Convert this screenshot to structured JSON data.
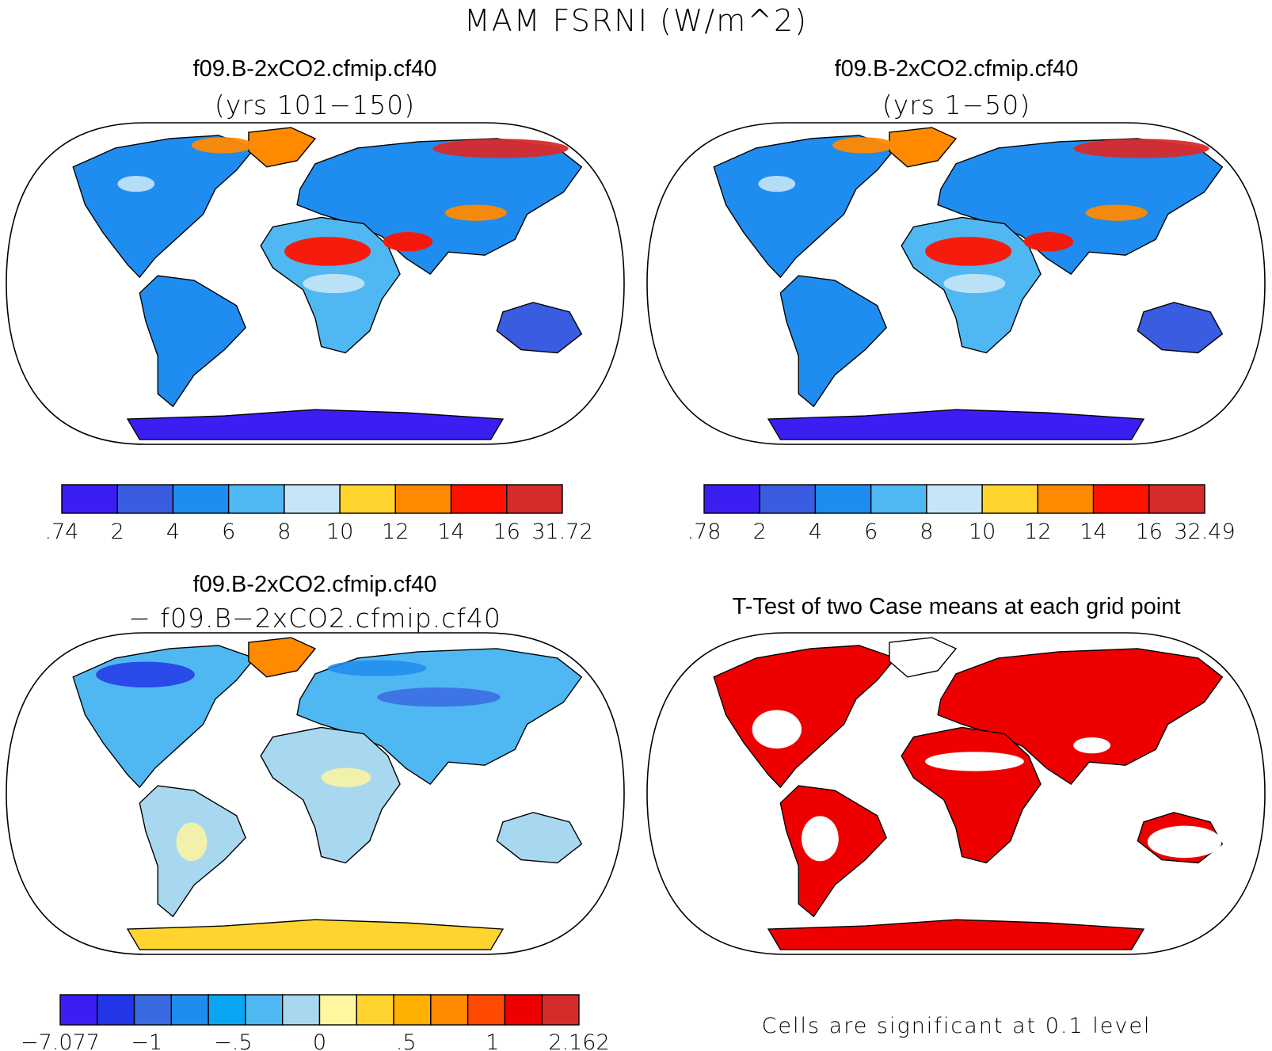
{
  "title": "MAM FSRNI (W/m^2)",
  "colors": {
    "land_outline": "#000000",
    "significant_fill": "#ee0000",
    "ocean": "#ffffff"
  },
  "chart_data": [
    {
      "type": "heatmap",
      "title": "f09.B-2xCO2.cfmip.cf40",
      "subtitle": "(yrs 101−150)",
      "projection": "robinson",
      "colorbar": {
        "labels": [
          ".74",
          "2",
          "4",
          "6",
          "8",
          "10",
          "12",
          "14",
          "16",
          "31.72"
        ],
        "levels": [
          0.74,
          2,
          4,
          6,
          8,
          10,
          12,
          14,
          16,
          31.72
        ],
        "colors": [
          "#3a1ef2",
          "#3a5ce0",
          "#1f8cf0",
          "#4fb8f2",
          "#c6e6f7",
          "#ffd42e",
          "#ff8a00",
          "#ff1300",
          "#d62b2b"
        ]
      }
    },
    {
      "type": "heatmap",
      "title": "f09.B-2xCO2.cfmip.cf40",
      "subtitle": "(yrs 1−50)",
      "projection": "robinson",
      "colorbar": {
        "labels": [
          ".78",
          "2",
          "4",
          "6",
          "8",
          "10",
          "12",
          "14",
          "16",
          "32.49"
        ],
        "levels": [
          0.78,
          2,
          4,
          6,
          8,
          10,
          12,
          14,
          16,
          32.49
        ],
        "colors": [
          "#3a1ef2",
          "#3a5ce0",
          "#1f8cf0",
          "#4fb8f2",
          "#c6e6f7",
          "#ffd42e",
          "#ff8a00",
          "#ff1300",
          "#d62b2b"
        ]
      }
    },
    {
      "type": "heatmap",
      "title": "f09.B-2xCO2.cfmip.cf40",
      "subtitle": "− f09.B−2xCO2.cfmip.cf40",
      "projection": "robinson",
      "colorbar": {
        "labels": [
          "−7.077",
          "−1",
          "−.5",
          "0",
          ".5",
          "1",
          "2.162"
        ],
        "levels": [
          -7.077,
          -1,
          -0.5,
          0,
          0.5,
          1,
          2.162
        ],
        "colors": [
          "#3a1ef2",
          "#2236e8",
          "#3a6ae2",
          "#1f8cf0",
          "#0aa6f4",
          "#4fb8f2",
          "#a8d8f0",
          "#fff6a0",
          "#ffd42e",
          "#ffb000",
          "#ff8a00",
          "#ff4a00",
          "#ee0000",
          "#d62b2b"
        ]
      }
    },
    {
      "type": "heatmap",
      "title": "T-Test of two Case means at each grid point",
      "projection": "robinson",
      "note": "Cells are significant at 0.1 level"
    }
  ]
}
